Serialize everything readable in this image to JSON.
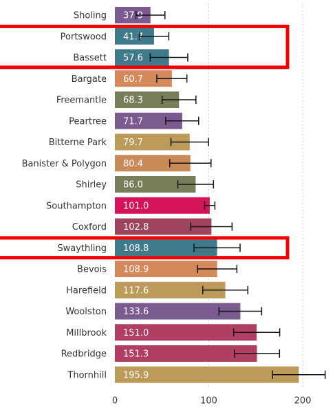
{
  "chart_data": {
    "type": "bar",
    "orientation": "horizontal",
    "categories": [
      "Sholing",
      "Portswood",
      "Bassett",
      "Bargate",
      "Freemantle",
      "Peartree",
      "Bitterne Park",
      "Banister & Polygon",
      "Shirley",
      "Southampton",
      "Coxford",
      "Swaythling",
      "Bevois",
      "Harefield",
      "Woolston",
      "Millbrook",
      "Redbridge",
      "Thornhill"
    ],
    "values": [
      37.9,
      41.7,
      57.6,
      60.7,
      68.3,
      71.7,
      79.7,
      80.4,
      86.0,
      101.0,
      102.8,
      108.8,
      108.9,
      117.6,
      133.6,
      151.0,
      151.3,
      195.9
    ],
    "value_labels": [
      "37.9",
      "41.7",
      "57.6",
      "60.7",
      "68.3",
      "71.7",
      "79.7",
      "80.4",
      "86.0",
      "101.0",
      "102.8",
      "108.8",
      "108.9",
      "117.6",
      "133.6",
      "151.0",
      "151.3",
      "195.9"
    ],
    "errors": [
      15.4,
      15.7,
      20,
      16,
      18,
      17.5,
      20,
      22,
      19,
      5.5,
      22,
      24.5,
      21,
      24,
      22.7,
      24.5,
      24,
      28
    ],
    "colors": [
      "#7b5a8f",
      "#3e7a8c",
      "#3e7a8c",
      "#d4895a",
      "#7a7d5a",
      "#7b5a8f",
      "#bb9a5a",
      "#c98a5a",
      "#7a7d5a",
      "#d6135a",
      "#a0445e",
      "#3e7a8c",
      "#d4895a",
      "#bb9a5a",
      "#7b5a8f",
      "#b03f62",
      "#b03f62",
      "#bb9a5a"
    ],
    "highlight": [
      [
        1,
        2
      ],
      [
        11,
        11
      ]
    ],
    "xlim": [
      0,
      230
    ],
    "xticks": [
      0,
      100,
      200
    ],
    "grid": true
  }
}
